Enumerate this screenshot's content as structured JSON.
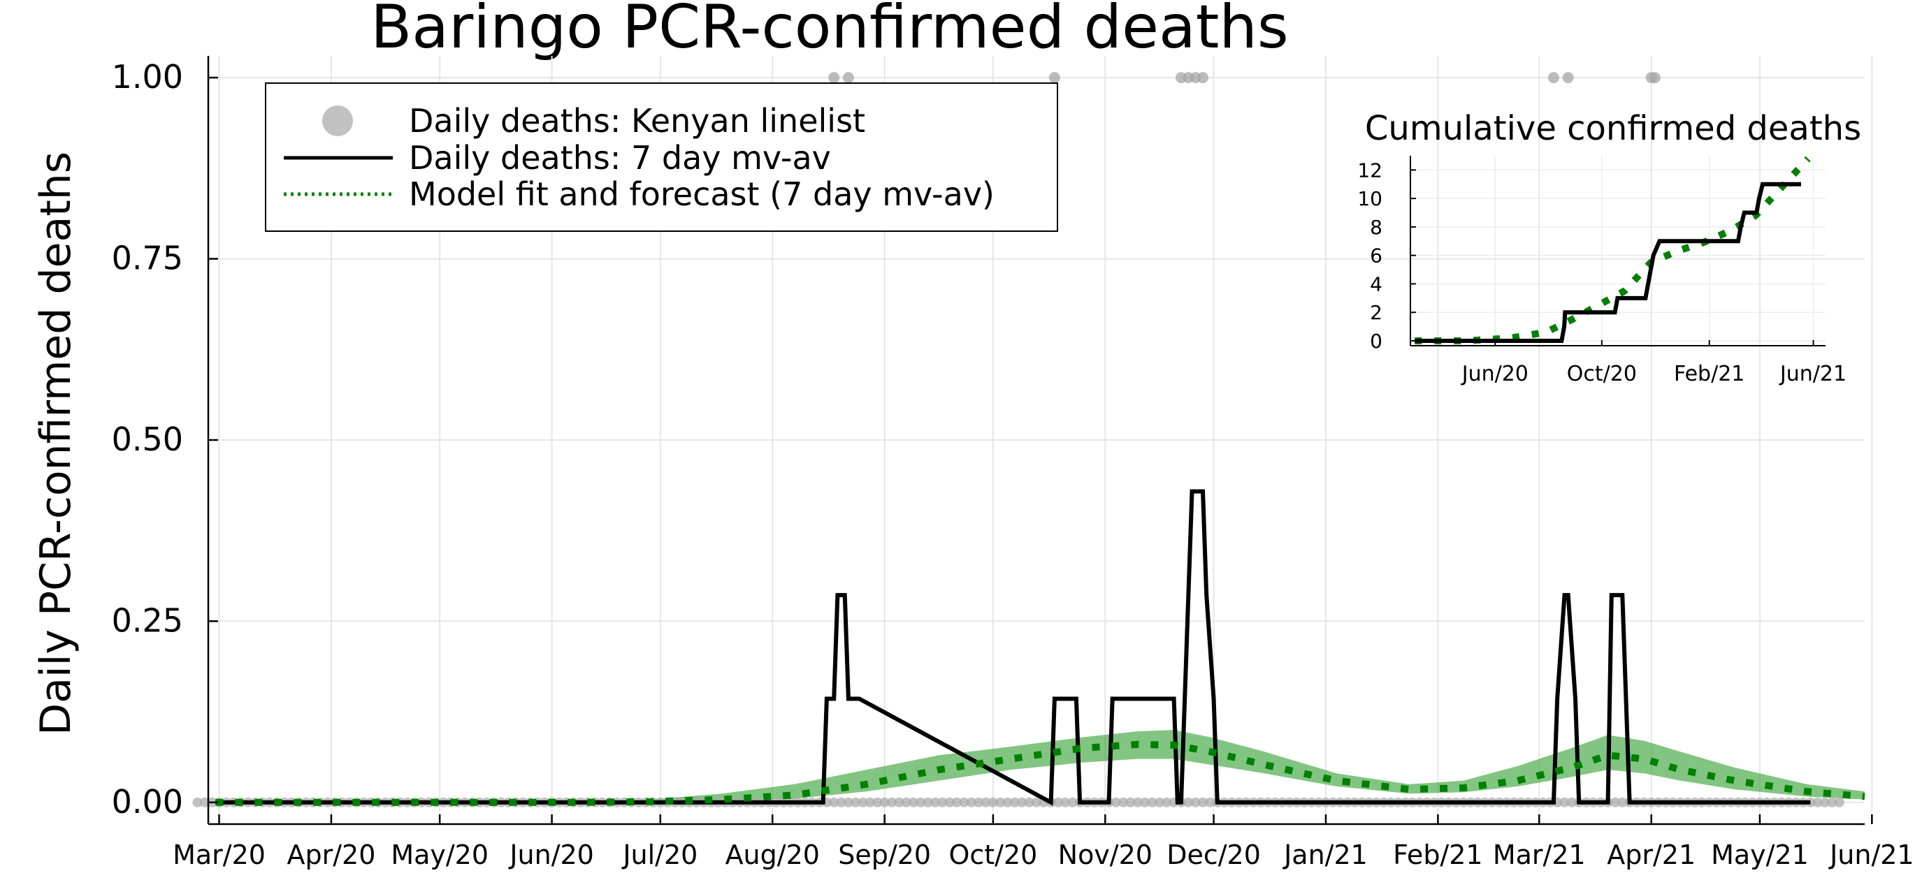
{
  "chart_data": [
    {
      "type": "line",
      "title": "Baringo PCR-confirmed deaths",
      "ylabel": "Daily PCR-confirmed deaths",
      "xlabel": "",
      "x_tick_labels": [
        "Mar/20",
        "Apr/20",
        "May/20",
        "Jun/20",
        "Jul/20",
        "Aug/20",
        "Sep/20",
        "Oct/20",
        "Nov/20",
        "Dec/20",
        "Jan/21",
        "Feb/21",
        "Mar/21",
        "Apr/21",
        "May/21",
        "Jun/21"
      ],
      "y_ticks": [
        0,
        0.25,
        0.5,
        0.75,
        1.0
      ],
      "y_tick_labels": [
        "0.00",
        "0.25",
        "0.50",
        "0.75",
        "1.00"
      ],
      "ylim": [
        -0.03,
        1.03
      ],
      "xlim_days": [
        -2,
        456
      ],
      "grid": true,
      "legend_position": "top-left",
      "legend": [
        {
          "label": "Daily deaths: Kenyan linelist",
          "style": "scatter",
          "color": "#a6a6a6"
        },
        {
          "label": "Daily deaths: 7 day mv-av",
          "style": "line",
          "color": "#000000"
        },
        {
          "label": "Model fit and forecast (7 day mv-av)",
          "style": "dotted",
          "color": "#008000"
        }
      ],
      "colors": {
        "band": "#3fa63f",
        "forecast": "#008000",
        "mvav": "#000000",
        "points": "#a6a6a6"
      },
      "series": [
        {
          "name": "Daily deaths: Kenyan linelist",
          "kind": "scatter",
          "x_days": [
            171,
            175,
            232,
            267,
            269,
            271,
            273,
            370,
            374,
            397,
            398
          ],
          "y": [
            1,
            1,
            1,
            1,
            1,
            1,
            1,
            1,
            1,
            1,
            1
          ],
          "zero_range_days": [
            -5,
            450
          ]
        },
        {
          "name": "Daily deaths: 7 day mv-av",
          "kind": "step",
          "x_days": [
            0,
            168,
            169,
            171,
            172,
            174,
            175,
            178,
            231,
            232,
            238,
            239,
            247,
            248,
            265,
            266,
            267,
            268,
            269,
            270,
            271,
            272,
            273,
            274,
            276,
            277,
            282,
            283,
            370,
            371,
            373,
            374,
            376,
            377,
            385,
            386,
            388,
            389,
            391,
            392,
            441
          ],
          "y": [
            0,
            0,
            0.143,
            0.143,
            0.286,
            0.286,
            0.143,
            0.143,
            0,
            0.143,
            0.143,
            0,
            0,
            0.143,
            0.143,
            0,
            0,
            0.143,
            0.286,
            0.429,
            0.429,
            0.429,
            0.429,
            0.286,
            0.143,
            0,
            0,
            0,
            0,
            0.143,
            0.286,
            0.286,
            0.143,
            0,
            0,
            0.286,
            0.286,
            0.286,
            0,
            0,
            0
          ]
        },
        {
          "name": "Model fit and forecast (7 day mv-av)",
          "kind": "dotted-line",
          "x_days": [
            0,
            100,
            120,
            140,
            160,
            180,
            200,
            220,
            240,
            255,
            265,
            275,
            290,
            310,
            330,
            345,
            360,
            375,
            385,
            395,
            405,
            420,
            440,
            456
          ],
          "y": [
            0,
            0,
            0.001,
            0.004,
            0.01,
            0.025,
            0.045,
            0.06,
            0.075,
            0.08,
            0.079,
            0.07,
            0.052,
            0.03,
            0.018,
            0.02,
            0.03,
            0.048,
            0.065,
            0.06,
            0.045,
            0.03,
            0.015,
            0.008
          ]
        },
        {
          "name": "Model uncertainty band",
          "kind": "band",
          "x_days": [
            0,
            100,
            120,
            140,
            160,
            180,
            200,
            220,
            240,
            255,
            265,
            275,
            290,
            310,
            330,
            345,
            360,
            375,
            385,
            395,
            405,
            420,
            440,
            456
          ],
          "lower": [
            0,
            0,
            0,
            0.002,
            0.005,
            0.015,
            0.03,
            0.045,
            0.055,
            0.06,
            0.06,
            0.052,
            0.04,
            0.022,
            0.012,
            0.014,
            0.022,
            0.035,
            0.045,
            0.04,
            0.03,
            0.018,
            0.008,
            0.004
          ],
          "upper": [
            0,
            0.001,
            0.004,
            0.012,
            0.025,
            0.045,
            0.065,
            0.077,
            0.09,
            0.098,
            0.1,
            0.09,
            0.07,
            0.04,
            0.025,
            0.03,
            0.05,
            0.075,
            0.093,
            0.085,
            0.07,
            0.048,
            0.025,
            0.015
          ]
        }
      ]
    },
    {
      "type": "line",
      "title": "Cumulative confirmed deaths",
      "x_tick_labels": [
        "Jun/20",
        "Oct/20",
        "Feb/21",
        "Jun/21"
      ],
      "x_tick_days": [
        92,
        214,
        337,
        456
      ],
      "y_ticks": [
        0,
        2,
        4,
        6,
        8,
        10,
        12
      ],
      "y_tick_labels": [
        "0",
        "2",
        "4",
        "6",
        "8",
        "10",
        "12"
      ],
      "ylim": [
        0,
        13
      ],
      "xlim_days": [
        -5,
        470
      ],
      "grid": true,
      "series": [
        {
          "name": "Cumulative deaths (observed)",
          "kind": "line",
          "x_days": [
            0,
            168,
            171,
            172,
            175,
            178,
            229,
            232,
            235,
            264,
            267,
            270,
            273,
            280,
            370,
            373,
            377,
            391,
            394,
            398,
            442
          ],
          "y": [
            0,
            0,
            1,
            2,
            2,
            2,
            2,
            3,
            3,
            3,
            4,
            5,
            6,
            7,
            7,
            8,
            9,
            9,
            10,
            11,
            11
          ]
        },
        {
          "name": "Cumulative model fit",
          "kind": "dotted-line",
          "x_days": [
            0,
            60,
            110,
            150,
            180,
            210,
            240,
            270,
            300,
            330,
            360,
            390,
            420,
            450
          ],
          "y": [
            0,
            0,
            0.2,
            0.6,
            1.5,
            2.5,
            3.5,
            5.5,
            6.3,
            6.9,
            7.7,
            8.8,
            10.8,
            12.8
          ]
        }
      ]
    }
  ]
}
